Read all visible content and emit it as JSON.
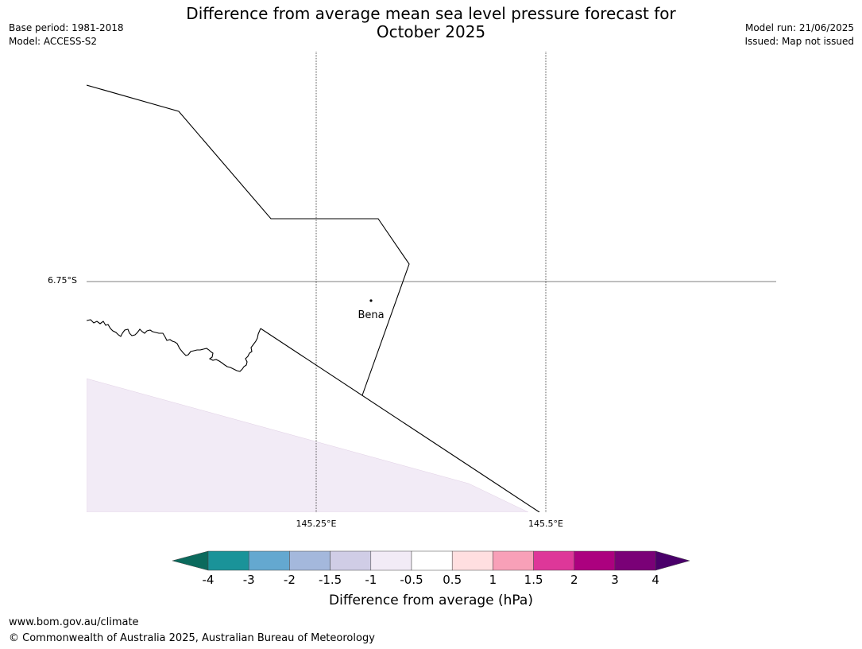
{
  "header": {
    "title_line1": "Difference from average mean sea level pressure forecast for",
    "title_line2": "October 2025",
    "base_period": "Base period: 1981-2018",
    "model": "Model: ACCESS-S2",
    "model_run": "Model run: 21/06/2025",
    "issued": "Issued: Map not issued"
  },
  "map": {
    "latitude_labels": [
      "6.75°S"
    ],
    "longitude_labels": [
      "145.25°E",
      "145.5°E"
    ],
    "place": {
      "name": "Bena"
    },
    "shaded_category": "-1 to -0.5"
  },
  "colorbar": {
    "label": "Difference from average (hPa)",
    "ticks": [
      "-4",
      "-3",
      "-2",
      "-1.5",
      "-1",
      "-0.5",
      "0.5",
      "1",
      "1.5",
      "2",
      "3",
      "4"
    ],
    "colors": {
      "below_-4": "#0b6a5d",
      "-4_to_-3": "#1a9399",
      "-3_to_-2": "#64a8d0",
      "-2_to_-1.5": "#a4b8dc",
      "-1.5_to_-1": "#d0cde6",
      "-1_to_-0.5": "#f2ebf6",
      "-0.5_to_0.5": "#ffffff",
      "0.5_to_1": "#ffdfe0",
      "1_to_1.5": "#f8a0b8",
      "1.5_to_2": "#de3799",
      "2_to_3": "#ac017f",
      "3_to_4": "#7a0177",
      "above_4": "#4a006a"
    }
  },
  "footer": {
    "url": "www.bom.gov.au/climate",
    "copyright": "© Commonwealth of Australia 2025, Australian Bureau of Meteorology"
  }
}
